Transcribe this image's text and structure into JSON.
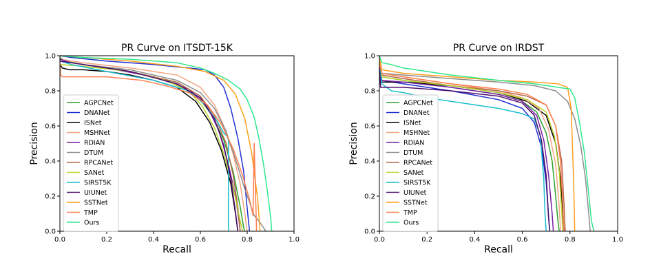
{
  "chart_data": [
    {
      "type": "line",
      "title": "PR Curve on ITSDT-15K",
      "xlabel": "Recall",
      "ylabel": "Precision",
      "xlim": [
        0,
        1.0
      ],
      "ylim": [
        0,
        1.0
      ],
      "xticks": [
        "0.0",
        "0.2",
        "0.4",
        "0.6",
        "0.8",
        "1.0"
      ],
      "yticks": [
        "0.0",
        "0.2",
        "0.4",
        "0.6",
        "0.8",
        "1.0"
      ],
      "grid": false,
      "legend_position": "lower-left",
      "series": [
        {
          "name": "AGPCNet",
          "color": "#2ca02c",
          "x": [
            0,
            0.02,
            0.1,
            0.2,
            0.3,
            0.4,
            0.5,
            0.6,
            0.65,
            0.7,
            0.74,
            0.77,
            0.785,
            0.79
          ],
          "y": [
            0.99,
            0.97,
            0.95,
            0.93,
            0.91,
            0.88,
            0.84,
            0.75,
            0.66,
            0.52,
            0.34,
            0.14,
            0.02,
            0
          ]
        },
        {
          "name": "DNANet",
          "color": "#1f2fd0",
          "x": [
            0,
            0.05,
            0.2,
            0.4,
            0.55,
            0.62,
            0.66,
            0.7,
            0.73,
            0.76,
            0.785,
            0.8,
            0.81
          ],
          "y": [
            1.0,
            0.99,
            0.97,
            0.95,
            0.93,
            0.92,
            0.89,
            0.82,
            0.7,
            0.53,
            0.34,
            0.13,
            0
          ]
        },
        {
          "name": "ISNet",
          "color": "#000000",
          "x": [
            0,
            0.01,
            0.04,
            0.1,
            0.2,
            0.3,
            0.4,
            0.5,
            0.58,
            0.64,
            0.69,
            0.73,
            0.75,
            0.76
          ],
          "y": [
            0.95,
            0.93,
            0.92,
            0.92,
            0.91,
            0.89,
            0.86,
            0.82,
            0.74,
            0.62,
            0.46,
            0.27,
            0.1,
            0
          ]
        },
        {
          "name": "MSHNet",
          "color": "#f4a582",
          "x": [
            0,
            0.1,
            0.3,
            0.5,
            0.6,
            0.66,
            0.7,
            0.74,
            0.77,
            0.79,
            0.8
          ],
          "y": [
            0.98,
            0.96,
            0.93,
            0.89,
            0.82,
            0.72,
            0.6,
            0.44,
            0.27,
            0.1,
            0
          ]
        },
        {
          "name": "RDIAN",
          "color": "#7b1fa2",
          "x": [
            0,
            0.05,
            0.2,
            0.4,
            0.55,
            0.63,
            0.68,
            0.72,
            0.75,
            0.765,
            0.77
          ],
          "y": [
            0.98,
            0.96,
            0.93,
            0.88,
            0.81,
            0.71,
            0.57,
            0.38,
            0.2,
            0.06,
            0
          ]
        },
        {
          "name": "DTUM",
          "color": "#8c8c8c",
          "x": [
            0,
            0.1,
            0.3,
            0.5,
            0.6,
            0.66,
            0.71,
            0.75,
            0.79,
            0.83,
            0.86,
            0.875,
            0.88
          ],
          "y": [
            0.97,
            0.95,
            0.92,
            0.86,
            0.79,
            0.7,
            0.57,
            0.41,
            0.24,
            0.09,
            0.04,
            0.01,
            0
          ]
        },
        {
          "name": "RPCANet",
          "color": "#b5684a",
          "x": [
            0,
            0.1,
            0.3,
            0.5,
            0.6,
            0.66,
            0.71,
            0.74,
            0.76,
            0.77
          ],
          "y": [
            0.97,
            0.95,
            0.91,
            0.85,
            0.77,
            0.66,
            0.5,
            0.32,
            0.14,
            0
          ]
        },
        {
          "name": "SANet",
          "color": "#bcd22c",
          "x": [
            0,
            0.1,
            0.3,
            0.45,
            0.55,
            0.61,
            0.66,
            0.7,
            0.74,
            0.77,
            0.78
          ],
          "y": [
            0.95,
            0.94,
            0.91,
            0.86,
            0.8,
            0.71,
            0.59,
            0.44,
            0.25,
            0.06,
            0
          ]
        },
        {
          "name": "SIRST5K",
          "color": "#17becf",
          "x": [
            0,
            0.05,
            0.2,
            0.4,
            0.55,
            0.62,
            0.67,
            0.7,
            0.715,
            0.72,
            0.72
          ],
          "y": [
            0.97,
            0.95,
            0.91,
            0.86,
            0.8,
            0.72,
            0.63,
            0.56,
            0.54,
            0.52,
            0
          ]
        },
        {
          "name": "UIUNet",
          "color": "#4b0d6b",
          "x": [
            0,
            0.1,
            0.3,
            0.5,
            0.6,
            0.66,
            0.7,
            0.73,
            0.75,
            0.76
          ],
          "y": [
            0.97,
            0.95,
            0.91,
            0.84,
            0.76,
            0.64,
            0.49,
            0.3,
            0.11,
            0
          ]
        },
        {
          "name": "SSTNet",
          "color": "#ff9f1a",
          "x": [
            0,
            0.1,
            0.3,
            0.5,
            0.62,
            0.7,
            0.75,
            0.79,
            0.82,
            0.845,
            0.855
          ],
          "y": [
            1.0,
            0.99,
            0.97,
            0.94,
            0.91,
            0.86,
            0.78,
            0.64,
            0.44,
            0.18,
            0
          ]
        },
        {
          "name": "TMP",
          "color": "#ff7f50",
          "x": [
            0,
            0.003,
            0.01,
            0.1,
            0.2,
            0.35,
            0.45,
            0.55,
            0.63,
            0.69,
            0.74,
            0.78,
            0.81,
            0.825,
            0.83,
            0.83,
            0.84
          ],
          "y": [
            0.96,
            0.89,
            0.88,
            0.88,
            0.88,
            0.86,
            0.83,
            0.79,
            0.72,
            0.61,
            0.47,
            0.32,
            0.18,
            0.09,
            0.5,
            0.5,
            0
          ]
        },
        {
          "name": "Ours",
          "color": "#2ee88b",
          "x": [
            0,
            0.1,
            0.3,
            0.5,
            0.6,
            0.66,
            0.72,
            0.77,
            0.8,
            0.83,
            0.85,
            0.87,
            0.885,
            0.9,
            0.905
          ],
          "y": [
            1.0,
            0.99,
            0.98,
            0.96,
            0.93,
            0.9,
            0.86,
            0.81,
            0.75,
            0.65,
            0.53,
            0.38,
            0.24,
            0.08,
            0
          ]
        }
      ]
    },
    {
      "type": "line",
      "title": "PR Curve on IRDST",
      "xlabel": "Recall",
      "ylabel": "Precision",
      "xlim": [
        0,
        1.0
      ],
      "ylim": [
        0,
        1.0
      ],
      "xticks": [
        "0.0",
        "0.2",
        "0.4",
        "0.6",
        "0.8",
        "1.0"
      ],
      "yticks": [
        "0.0",
        "0.2",
        "0.4",
        "0.6",
        "0.8",
        "1.0"
      ],
      "grid": false,
      "legend_position": "lower-left",
      "series": [
        {
          "name": "AGPCNet",
          "color": "#2ca02c",
          "x": [
            0,
            0.01,
            0.1,
            0.3,
            0.5,
            0.6,
            0.66,
            0.7,
            0.725,
            0.74,
            0.75,
            0.755
          ],
          "y": [
            0.98,
            0.88,
            0.86,
            0.82,
            0.78,
            0.74,
            0.68,
            0.56,
            0.4,
            0.2,
            0.05,
            0
          ]
        },
        {
          "name": "DNANet",
          "color": "#1f2fd0",
          "x": [
            0,
            0.01,
            0.1,
            0.3,
            0.5,
            0.6,
            0.65,
            0.68,
            0.7,
            0.71,
            0.715
          ],
          "y": [
            0.97,
            0.86,
            0.84,
            0.8,
            0.75,
            0.7,
            0.62,
            0.48,
            0.28,
            0.08,
            0
          ]
        },
        {
          "name": "ISNet",
          "color": "#000000",
          "x": [
            0,
            0.005,
            0.1,
            0.3,
            0.5,
            0.62,
            0.7,
            0.74,
            0.76,
            0.77,
            0.775
          ],
          "y": [
            0.95,
            0.85,
            0.85,
            0.83,
            0.79,
            0.74,
            0.66,
            0.5,
            0.3,
            0.1,
            0
          ]
        },
        {
          "name": "MSHNet",
          "color": "#f4a582",
          "x": [
            0,
            0.01,
            0.1,
            0.3,
            0.5,
            0.6,
            0.67,
            0.71,
            0.74,
            0.755,
            0.76
          ],
          "y": [
            0.97,
            0.9,
            0.88,
            0.84,
            0.8,
            0.76,
            0.7,
            0.58,
            0.38,
            0.14,
            0
          ]
        },
        {
          "name": "RDIAN",
          "color": "#7b1fa2",
          "x": [
            0,
            0.005,
            0.1,
            0.3,
            0.5,
            0.6,
            0.66,
            0.69,
            0.71,
            0.725,
            0.73
          ],
          "y": [
            0.95,
            0.86,
            0.85,
            0.82,
            0.78,
            0.74,
            0.66,
            0.52,
            0.32,
            0.1,
            0
          ]
        },
        {
          "name": "DTUM",
          "color": "#8c8c8c",
          "x": [
            0,
            0.01,
            0.1,
            0.3,
            0.5,
            0.65,
            0.74,
            0.79,
            0.82,
            0.845,
            0.865,
            0.88,
            0.885
          ],
          "y": [
            0.97,
            0.9,
            0.89,
            0.87,
            0.85,
            0.83,
            0.8,
            0.74,
            0.64,
            0.49,
            0.3,
            0.08,
            0
          ]
        },
        {
          "name": "RPCANet",
          "color": "#b5684a",
          "x": [
            0,
            0.01,
            0.1,
            0.3,
            0.5,
            0.62,
            0.7,
            0.74,
            0.765,
            0.775,
            0.78
          ],
          "y": [
            0.98,
            0.89,
            0.87,
            0.83,
            0.8,
            0.77,
            0.72,
            0.6,
            0.4,
            0.15,
            0
          ]
        },
        {
          "name": "SANet",
          "color": "#bcd22c",
          "x": [
            0,
            0.01,
            0.1,
            0.3,
            0.5,
            0.62,
            0.7,
            0.735,
            0.755,
            0.765,
            0.77
          ],
          "y": [
            0.97,
            0.88,
            0.86,
            0.83,
            0.79,
            0.75,
            0.68,
            0.54,
            0.34,
            0.12,
            0
          ]
        },
        {
          "name": "SIRST5K",
          "color": "#17becf",
          "x": [
            0,
            0.01,
            0.05,
            0.1,
            0.2,
            0.3,
            0.4,
            0.5,
            0.6,
            0.65,
            0.675,
            0.69,
            0.695,
            0.7
          ],
          "y": [
            0.96,
            0.84,
            0.8,
            0.79,
            0.76,
            0.74,
            0.72,
            0.7,
            0.67,
            0.64,
            0.55,
            0.3,
            0.1,
            0
          ]
        },
        {
          "name": "UIUNet",
          "color": "#4b0d6b",
          "x": [
            0,
            0.005,
            0.1,
            0.3,
            0.5,
            0.6,
            0.65,
            0.68,
            0.7,
            0.71,
            0.715
          ],
          "y": [
            0.95,
            0.82,
            0.82,
            0.8,
            0.77,
            0.73,
            0.66,
            0.52,
            0.32,
            0.08,
            0
          ]
        },
        {
          "name": "SSTNet",
          "color": "#ff9f1a",
          "x": [
            0,
            0.01,
            0.1,
            0.3,
            0.5,
            0.65,
            0.75,
            0.79,
            0.805,
            0.815,
            0.82
          ],
          "y": [
            0.99,
            0.92,
            0.9,
            0.88,
            0.86,
            0.85,
            0.84,
            0.82,
            0.7,
            0.3,
            0
          ]
        },
        {
          "name": "TMP",
          "color": "#ff7f50",
          "x": [
            0,
            0.01,
            0.1,
            0.3,
            0.5,
            0.62,
            0.7,
            0.74,
            0.76,
            0.77,
            0.775
          ],
          "y": [
            0.96,
            0.9,
            0.88,
            0.84,
            0.81,
            0.78,
            0.72,
            0.6,
            0.4,
            0.15,
            0
          ]
        },
        {
          "name": "Ours",
          "color": "#2ee88b",
          "x": [
            0,
            0.01,
            0.05,
            0.1,
            0.2,
            0.3,
            0.5,
            0.65,
            0.75,
            0.8,
            0.82,
            0.84,
            0.86,
            0.875,
            0.89,
            0.9
          ],
          "y": [
            1.0,
            0.96,
            0.95,
            0.93,
            0.91,
            0.89,
            0.86,
            0.84,
            0.82,
            0.81,
            0.76,
            0.62,
            0.45,
            0.26,
            0.06,
            0
          ]
        }
      ]
    }
  ]
}
